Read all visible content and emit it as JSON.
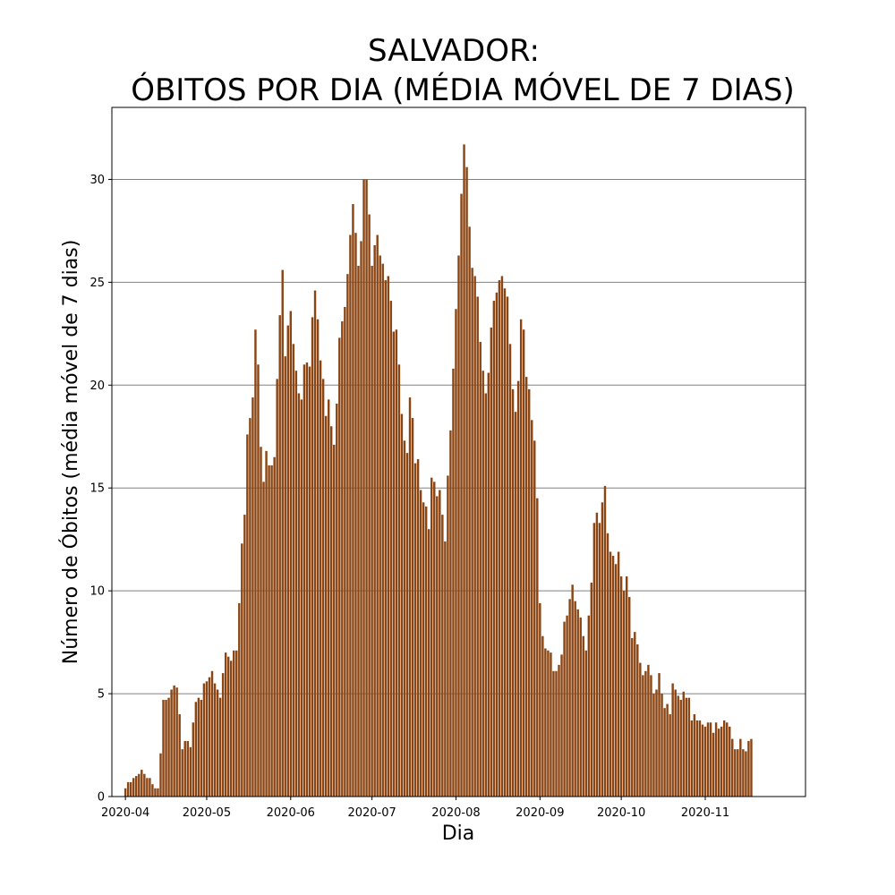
{
  "chart_data": {
    "type": "bar",
    "title_line1": "SALVADOR:",
    "title_line2": "ÓBITOS POR DIA (MÉDIA MÓVEL DE 7 DIAS)",
    "xlabel": "Dia",
    "ylabel": "Número de Óbitos (média móvel de 7 dias)",
    "bar_color": "#8b4513",
    "grid_color": "#808080",
    "grid": "horizontal",
    "ylim": [
      0,
      33.5
    ],
    "yticks": [
      0,
      5,
      10,
      15,
      20,
      25,
      30
    ],
    "xlim": [
      "2020-03-27",
      "2020-12-08"
    ],
    "xticks": [
      "2020-04",
      "2020-05",
      "2020-06",
      "2020-07",
      "2020-08",
      "2020-09",
      "2020-10",
      "2020-11"
    ],
    "xtick_dates": [
      "2020-04-01",
      "2020-05-01",
      "2020-06-01",
      "2020-07-01",
      "2020-08-01",
      "2020-09-01",
      "2020-10-01",
      "2020-11-01"
    ],
    "x_start": "2020-04-01",
    "values": [
      0.4,
      0.7,
      0.7,
      0.9,
      1.0,
      1.1,
      1.3,
      1.1,
      0.9,
      0.9,
      0.6,
      0.4,
      0.4,
      2.1,
      4.7,
      4.7,
      4.8,
      5.2,
      5.4,
      5.3,
      4.0,
      2.3,
      2.7,
      2.7,
      2.4,
      3.6,
      4.6,
      4.8,
      4.7,
      5.5,
      5.6,
      5.8,
      6.1,
      5.5,
      5.2,
      4.8,
      6.0,
      7.0,
      6.8,
      6.6,
      7.1,
      7.1,
      9.4,
      12.3,
      13.7,
      17.6,
      18.4,
      19.4,
      22.7,
      21.0,
      17.0,
      15.3,
      16.8,
      16.1,
      16.1,
      16.5,
      20.3,
      23.4,
      25.6,
      21.4,
      22.9,
      23.6,
      22.0,
      20.7,
      19.6,
      19.3,
      21.0,
      21.1,
      20.9,
      23.3,
      24.6,
      23.2,
      21.2,
      20.3,
      18.5,
      19.3,
      18.0,
      17.1,
      19.1,
      22.3,
      23.1,
      23.8,
      25.4,
      27.3,
      28.8,
      27.4,
      25.8,
      27.0,
      30.0,
      30.0,
      28.3,
      25.8,
      26.8,
      27.3,
      26.3,
      25.9,
      25.1,
      25.3,
      24.1,
      22.6,
      22.7,
      21.0,
      18.6,
      17.3,
      16.7,
      19.4,
      18.4,
      16.2,
      16.4,
      14.9,
      14.3,
      14.1,
      13.0,
      15.5,
      15.3,
      14.6,
      14.9,
      13.7,
      12.4,
      15.6,
      17.8,
      20.8,
      23.7,
      26.3,
      29.3,
      31.7,
      30.6,
      27.7,
      25.7,
      25.3,
      24.3,
      22.1,
      20.7,
      19.6,
      20.6,
      22.8,
      24.1,
      24.5,
      25.1,
      25.3,
      24.7,
      24.3,
      22.0,
      19.8,
      18.7,
      20.2,
      23.2,
      22.7,
      20.4,
      19.8,
      18.3,
      17.3,
      14.5,
      9.4,
      7.8,
      7.2,
      7.1,
      7.0,
      6.1,
      6.1,
      6.4,
      6.9,
      8.5,
      8.8,
      9.6,
      10.3,
      9.5,
      9.1,
      8.7,
      7.8,
      7.1,
      8.8,
      10.4,
      13.3,
      13.8,
      13.3,
      14.3,
      15.1,
      12.8,
      11.9,
      11.7,
      11.3,
      11.9,
      10.7,
      10.0,
      10.7,
      9.7,
      7.7,
      8.0,
      7.4,
      6.5,
      5.9,
      6.1,
      6.4,
      5.9,
      5.0,
      5.2,
      6.0,
      5.0,
      4.3,
      4.5,
      4.0,
      5.5,
      5.2,
      4.9,
      4.7,
      5.1,
      4.8,
      4.8,
      3.7,
      4.0,
      3.7,
      3.7,
      3.5,
      3.4,
      3.6,
      3.6,
      3.1,
      3.6,
      3.3,
      3.4,
      3.7,
      3.6,
      3.4,
      2.8,
      2.3,
      2.3,
      2.8,
      2.3,
      2.2,
      2.7,
      2.8
    ]
  }
}
